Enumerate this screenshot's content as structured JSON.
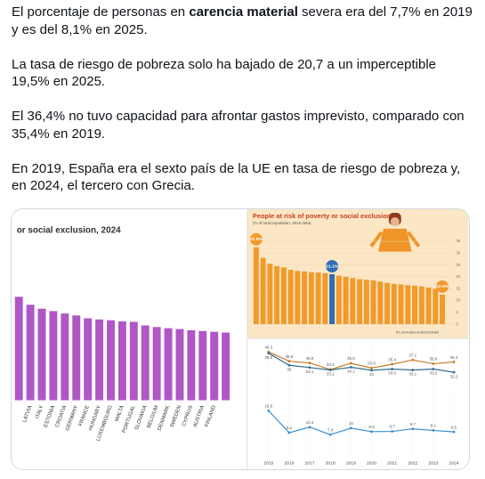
{
  "post": {
    "paragraphs": [
      [
        "El porcentaje de personas en ",
        "carencia material",
        " severa era del 7,7% en 2019 y es del 8,1% en 2025."
      ],
      "La tasa de riesgo de pobreza solo ha bajado de 20,7 a un imperceptible 19,5% en 2025.",
      "El 36,4% no tuvo capacidad para afrontar gastos imprevisto, comparado con 35,4% en 2019.",
      "En 2019, España era el sexto país de la UE en tasa de riesgo de pobreza y, en 2024, el tercero con Grecia."
    ]
  },
  "chart_data": [
    {
      "type": "bar",
      "title": "or social exclusion, 2024",
      "color": "#b056c6",
      "categories": [
        null,
        "LATVIA",
        "ITALY",
        "ESTONIA",
        "CROATIA",
        "GERMANY",
        "FRANCE",
        "HUNGARY",
        "LUXEMBOURG",
        "MALTA",
        "PORTUGAL",
        "SLOVAKIA",
        "BELGIUM",
        "DENMARK",
        "SWEDEN",
        "CYPRUS",
        "AUSTRIA",
        "FINLAND",
        null
      ],
      "values": [
        26,
        24,
        23,
        22.4,
        21.8,
        21.3,
        20.6,
        20.3,
        20.1,
        19.8,
        19.7,
        18.8,
        18.4,
        18.1,
        17.9,
        17.6,
        17.4,
        17.2,
        17
      ],
      "ylim": [
        0,
        40
      ]
    },
    {
      "type": "bar",
      "title": "People at risk of poverty or social exclusion",
      "subtitle": "(% of total population, 2019 data)",
      "source": "ec.europa.eu/eurostat",
      "categories": [
        null,
        null,
        null,
        null,
        null,
        null,
        null,
        null,
        null,
        null,
        null,
        null,
        null,
        null,
        null,
        null,
        null,
        null,
        null,
        null,
        null,
        null,
        null,
        null,
        null,
        null,
        null,
        null
      ],
      "values": [
        32.5,
        28,
        25.5,
        24.5,
        24,
        23,
        22.5,
        22.3,
        22,
        21.8,
        21.5,
        21.1,
        20.5,
        20,
        19.5,
        19,
        18.8,
        18.5,
        18,
        17.5,
        17,
        16.8,
        16.5,
        16.3,
        16,
        15.5,
        15,
        12.5
      ],
      "value_labels": [
        "32.5%",
        null,
        null,
        null,
        null,
        null,
        null,
        null,
        null,
        null,
        null,
        "21.1%",
        null,
        null,
        null,
        null,
        null,
        null,
        null,
        null,
        null,
        null,
        null,
        null,
        null,
        null,
        null,
        "12.5%"
      ],
      "colors": [
        "#f19a2c",
        "#f19a2c",
        "#f19a2c",
        "#f19a2c",
        "#f19a2c",
        "#f19a2c",
        "#f19a2c",
        "#f19a2c",
        "#f19a2c",
        "#f19a2c",
        "#f19a2c",
        "#2f6db5",
        "#f19a2c",
        "#f19a2c",
        "#f19a2c",
        "#f19a2c",
        "#f19a2c",
        "#f19a2c",
        "#f19a2c",
        "#f19a2c",
        "#f19a2c",
        "#f19a2c",
        "#f19a2c",
        "#f19a2c",
        "#f19a2c",
        "#f19a2c",
        "#f19a2c",
        "#f19a2c"
      ],
      "ylim": [
        0,
        35
      ],
      "yticks": [
        0,
        5,
        10,
        15,
        20,
        25,
        30,
        35
      ]
    },
    {
      "type": "line",
      "categories": [
        "2015",
        "2016",
        "2017",
        "2018",
        "2019",
        "2020",
        "2021",
        "2022",
        "2023",
        "2024"
      ],
      "series": [
        {
          "color": "#c8782a",
          "values": [
            40.3,
            36.6,
            35.9,
            33.3,
            35.8,
            33.9,
            35.4,
            37.1,
            35.6,
            36.3
          ]
        },
        {
          "color": "#2f6d8e",
          "values": [
            39.8,
            35.0,
            34.1,
            33.1,
            34.2,
            33.0,
            33.5,
            33.1,
            33.5,
            32.2
          ]
        },
        {
          "color": "#3a8fd0",
          "values": [
            16.9,
            8.2,
            10.4,
            7.4,
            10.0,
            8.6,
            8.7,
            9.7,
            9.1,
            8.5
          ]
        }
      ],
      "ylim": [
        0,
        45
      ]
    }
  ]
}
